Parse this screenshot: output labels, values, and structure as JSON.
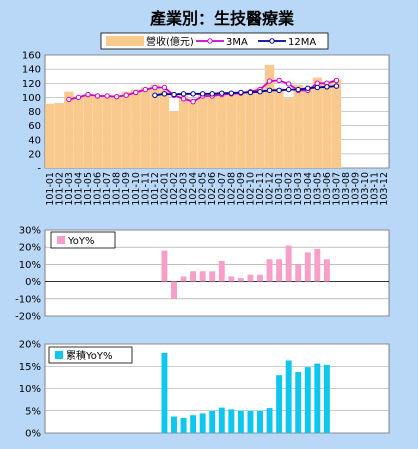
{
  "chart_data": [
    {
      "type": "bar",
      "title": "產業別：生技醫療業",
      "categories": [
        "101-01",
        "101-02",
        "101-03",
        "101-04",
        "101-05",
        "101-06",
        "101-07",
        "101-08",
        "101-09",
        "101-10",
        "101-11",
        "101-12",
        "102-01",
        "102-02",
        "102-03",
        "102-04",
        "102-05",
        "102-06",
        "102-07",
        "102-08",
        "102-09",
        "102-10",
        "102-11",
        "102-12",
        "103-01",
        "103-02",
        "103-03",
        "103-04",
        "103-05",
        "103-06",
        "103-07",
        "103-08",
        "103-09",
        "103-10",
        "103-11",
        "103-12"
      ],
      "y_ticks": [
        "160",
        "140",
        "120",
        "100",
        "80",
        "60",
        "40",
        "20",
        "-"
      ],
      "ylim": [
        0,
        160
      ],
      "legend": "top",
      "grid": true,
      "series": [
        {
          "name": "營收(億元)",
          "kind": "bar",
          "color": "#f9c98e",
          "values": [
            91,
            92,
            108,
            101,
            104,
            101,
            100,
            101,
            108,
            111,
            114,
            118,
            111,
            80,
            103,
            98,
            105,
            103,
            104,
            107,
            108,
            110,
            114,
            146,
            113,
            99,
            118,
            113,
            128,
            120,
            125,
            null,
            null,
            null,
            null,
            null
          ]
        },
        {
          "name": "3MA",
          "kind": "line",
          "color": "#cc00cc",
          "values": [
            null,
            null,
            97,
            100,
            104,
            102,
            102,
            101,
            103,
            107,
            111,
            114,
            114,
            103,
            98,
            94,
            102,
            102,
            104,
            105,
            106,
            108,
            111,
            123,
            124,
            119,
            110,
            110,
            120,
            120,
            124,
            null,
            null,
            null,
            null,
            null
          ]
        },
        {
          "name": "12MA",
          "kind": "line",
          "color": "#000099",
          "values": [
            null,
            null,
            null,
            null,
            null,
            null,
            null,
            null,
            null,
            null,
            null,
            103,
            105,
            104,
            105,
            105,
            105,
            105,
            106,
            106,
            107,
            107,
            108,
            110,
            110,
            111,
            111,
            113,
            114,
            115,
            116,
            null,
            null,
            null,
            null,
            null
          ]
        }
      ]
    },
    {
      "type": "bar",
      "categories_ref": 0,
      "y_ticks": [
        "30%",
        "20%",
        "10%",
        "0%",
        "-10%",
        "-20%"
      ],
      "ylim": [
        -0.2,
        0.3
      ],
      "legend": "top-left",
      "grid": true,
      "series": [
        {
          "name": "YoY%",
          "color": "#f79fc9",
          "values": [
            null,
            null,
            null,
            null,
            null,
            null,
            null,
            null,
            null,
            null,
            null,
            null,
            0.18,
            -0.1,
            0.03,
            0.06,
            0.06,
            0.06,
            0.12,
            0.03,
            0.02,
            0.04,
            0.04,
            0.13,
            0.13,
            0.21,
            0.1,
            0.17,
            0.19,
            0.13,
            null,
            null,
            null,
            null,
            null,
            null
          ]
        }
      ]
    },
    {
      "type": "bar",
      "categories_ref": 0,
      "y_ticks": [
        "20%",
        "15%",
        "10%",
        "5%",
        "0%"
      ],
      "ylim": [
        0,
        0.2
      ],
      "legend": "top-left",
      "grid": true,
      "series": [
        {
          "name": "累積YoY%",
          "color": "#0ec7ef",
          "values": [
            null,
            null,
            null,
            null,
            null,
            null,
            null,
            null,
            null,
            null,
            null,
            null,
            0.18,
            0.037,
            0.034,
            0.04,
            0.044,
            0.05,
            0.057,
            0.053,
            0.05,
            0.05,
            0.05,
            0.056,
            0.13,
            0.163,
            0.137,
            0.148,
            0.156,
            0.153,
            null,
            null,
            null,
            null,
            null,
            null
          ]
        }
      ]
    }
  ]
}
